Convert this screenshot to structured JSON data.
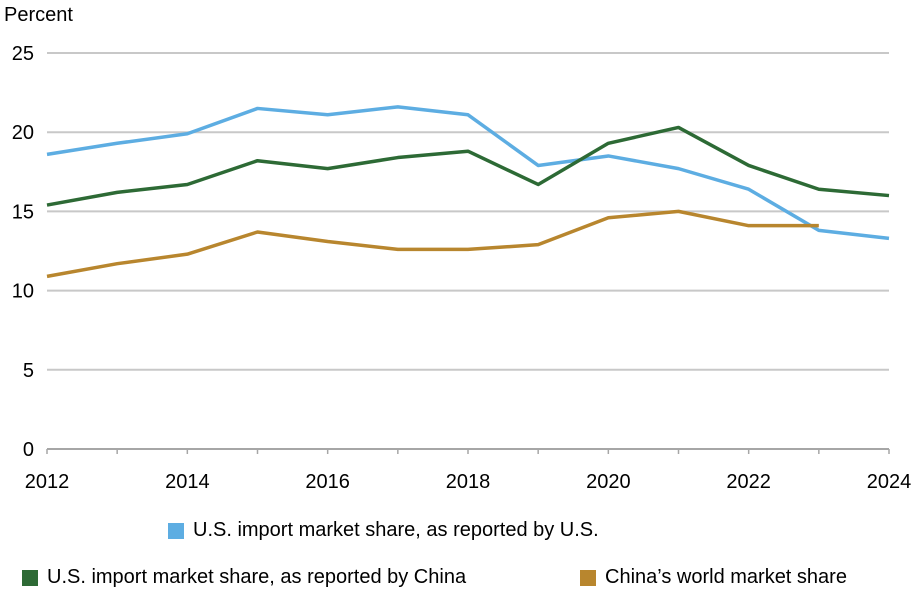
{
  "chart_data": {
    "type": "line",
    "ylabel": "Percent",
    "ylim": [
      0,
      25
    ],
    "yticks": [
      0,
      5,
      10,
      15,
      20,
      25
    ],
    "xlim": [
      2012,
      2024
    ],
    "xticks": [
      2012,
      2014,
      2016,
      2018,
      2020,
      2022,
      2024
    ],
    "grid": true,
    "legend_position": "bottom",
    "series": [
      {
        "name": "U.S. import market share, as reported by U.S.",
        "color": "#5dade2",
        "x": [
          2012,
          2013,
          2014,
          2015,
          2016,
          2017,
          2018,
          2019,
          2020,
          2021,
          2022,
          2023,
          2024
        ],
        "values": [
          18.6,
          19.3,
          19.9,
          21.5,
          21.1,
          21.6,
          21.1,
          17.9,
          18.5,
          17.7,
          16.4,
          13.8,
          13.3
        ]
      },
      {
        "name": "U.S. import market share, as reported by China",
        "color": "#2d6a35",
        "x": [
          2012,
          2013,
          2014,
          2015,
          2016,
          2017,
          2018,
          2019,
          2020,
          2021,
          2022,
          2023,
          2024
        ],
        "values": [
          15.4,
          16.2,
          16.7,
          18.2,
          17.7,
          18.4,
          18.8,
          16.7,
          19.3,
          20.3,
          17.9,
          16.4,
          16.0
        ]
      },
      {
        "name": "China’s world market share",
        "color": "#b8862e",
        "x": [
          2012,
          2013,
          2014,
          2015,
          2016,
          2017,
          2018,
          2019,
          2020,
          2021,
          2022,
          2023
        ],
        "values": [
          10.9,
          11.7,
          12.3,
          13.7,
          13.1,
          12.6,
          12.6,
          12.9,
          14.6,
          15.0,
          14.1,
          14.1
        ]
      }
    ]
  }
}
